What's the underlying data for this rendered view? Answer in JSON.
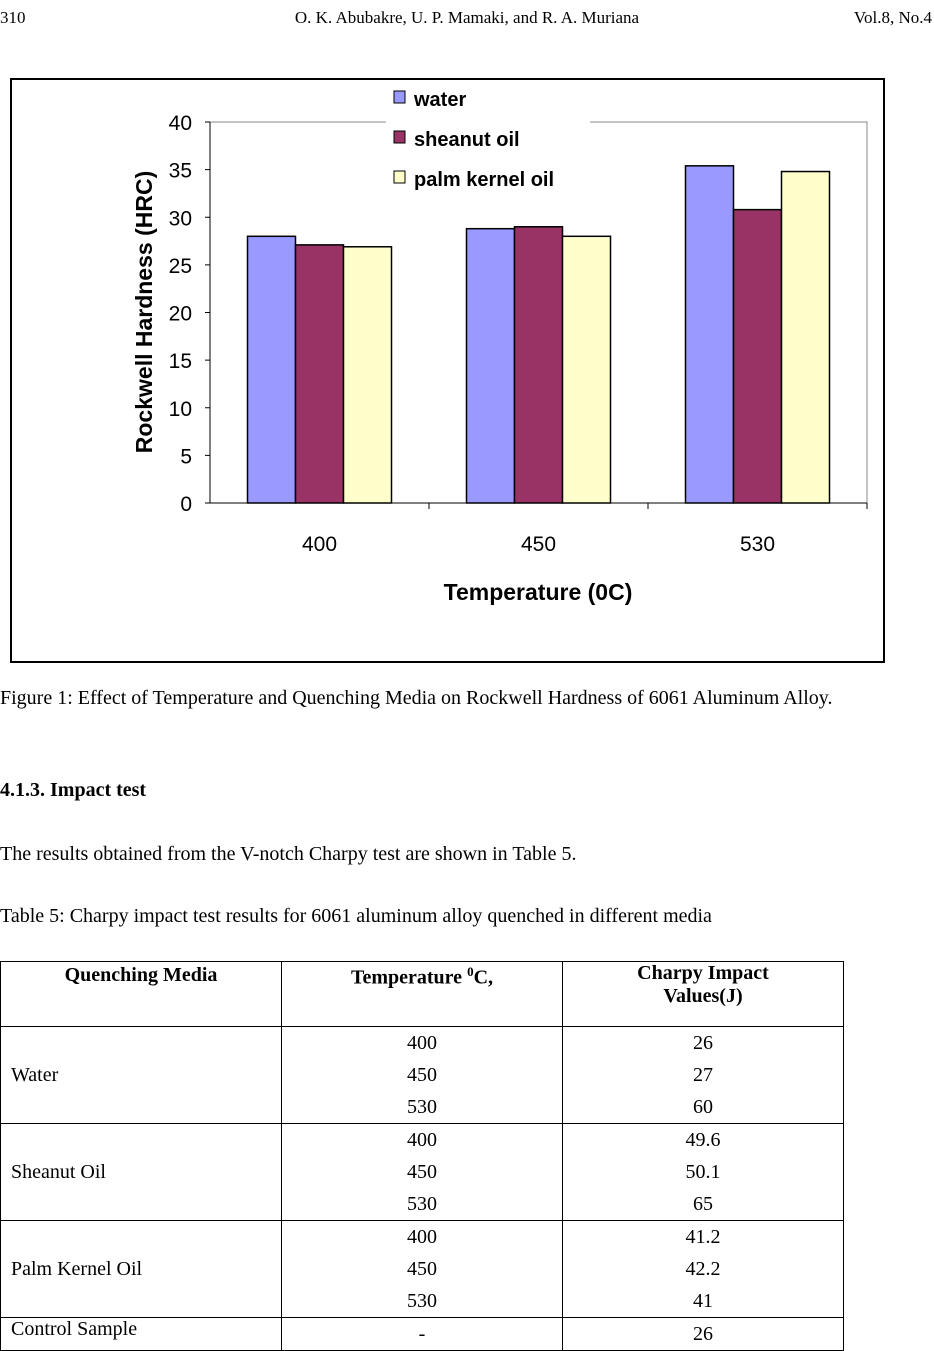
{
  "header": {
    "page": "310",
    "authors": "O. K. Abubakre, U. P. Mamaki,  and R. A. Muriana",
    "volume": "Vol.8, No.4"
  },
  "chart_data": {
    "type": "bar",
    "categories": [
      "400",
      "450",
      "530"
    ],
    "series": [
      {
        "name": "water",
        "values": [
          28,
          28.8,
          35.4
        ],
        "color": "#9999ff"
      },
      {
        "name": "sheanut oil",
        "values": [
          27.1,
          29,
          30.8
        ],
        "color": "#993366"
      },
      {
        "name": "palm kernel oil",
        "values": [
          26.9,
          28,
          34.8
        ],
        "color": "#ffffcc"
      }
    ],
    "xlabel": "Temperature (0C)",
    "ylabel": "Rockwell Hardness (HRC)",
    "ylim": [
      0,
      40
    ],
    "yticks": [
      "0",
      "5",
      "10",
      "15",
      "20",
      "25",
      "30",
      "35",
      "40"
    ],
    "legend": "top-center",
    "grid": false
  },
  "caption": "Figure 1: Effect of Temperature and Quenching Media on Rockwell Hardness of 6061 Aluminum Alloy.",
  "section": "4.1.3. Impact test",
  "para": "The results obtained from the V-notch Charpy test are shown in Table 5.",
  "table_caption": "Table 5: Charpy impact test results for 6061 aluminum alloy quenched in different media",
  "table": {
    "headers": [
      "Quenching Media",
      "Temperature ",
      "0",
      "C,",
      "Charpy Impact Values(J)"
    ],
    "rows": [
      {
        "media": "Water",
        "temps": "400\n450\n530",
        "values": "26\n27\n60"
      },
      {
        "media": "Sheanut Oil",
        "temps": "400\n450\n530",
        "values": "49.6\n50.1\n65"
      },
      {
        "media": "Palm Kernel Oil",
        "temps": "400\n450\n530",
        "values": "41.2\n42.2\n41"
      }
    ],
    "control": {
      "media": "Control Sample",
      "temp": "-",
      "value": "26"
    }
  }
}
